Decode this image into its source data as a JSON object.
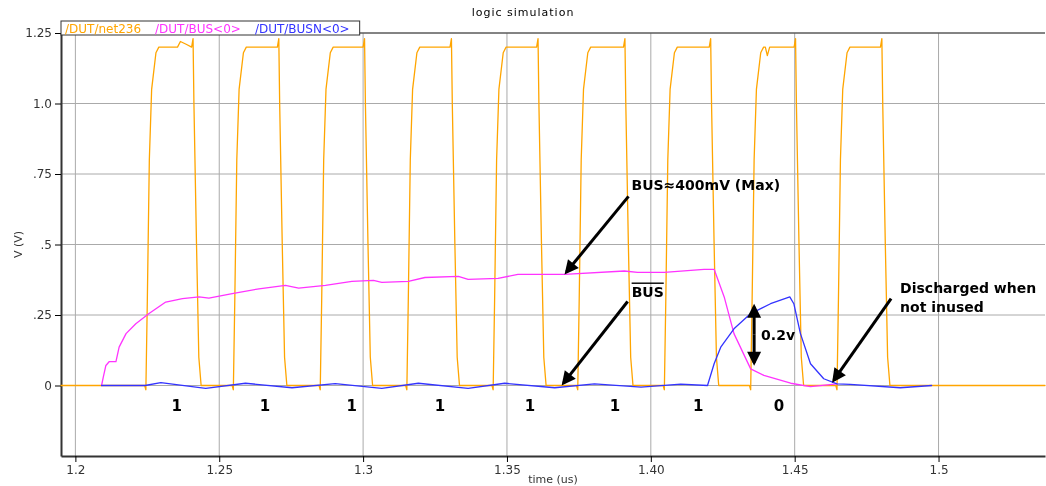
{
  "chart_data": {
    "type": "line",
    "title": "logic simulation",
    "xlabel": "time (us)",
    "ylabel": "V (V)",
    "xlim": [
      1.195,
      1.537
    ],
    "ylim": [
      -0.25,
      1.25
    ],
    "xticks": [
      1.2,
      1.25,
      1.3,
      1.35,
      {
        "value": 1.4,
        "label": "1.40"
      },
      1.45,
      1.5
    ],
    "yticks": [
      0,
      {
        "value": 0.25,
        "label": ".25"
      },
      {
        "value": 0.5,
        "label": ".5"
      },
      {
        "value": 0.75,
        "label": ".75"
      },
      {
        "value": 1,
        "label": "1.0"
      },
      1.25
    ],
    "grid": true,
    "legend": "top left",
    "line_style": "solid",
    "marker": "none",
    "series": [
      {
        "name": "/DUT/net236",
        "color": "#ffa500",
        "x": [
          1.195,
          1.2241,
          1.2245,
          1.225,
          1.2257,
          1.2265,
          1.228,
          1.229,
          1.2355,
          1.2365,
          1.2385,
          1.2404,
          1.2409,
          1.2412,
          1.2421,
          1.2429,
          1.2437,
          1.2545,
          1.2549,
          1.2554,
          1.2561,
          1.2569,
          1.2584,
          1.2594,
          1.2702,
          1.2707,
          1.271,
          1.2719,
          1.2727,
          1.2735,
          1.2847,
          1.2851,
          1.2856,
          1.2863,
          1.2871,
          1.2886,
          1.2896,
          1.3,
          1.3005,
          1.3008,
          1.3017,
          1.3025,
          1.3033,
          1.3148,
          1.3152,
          1.3157,
          1.3164,
          1.3172,
          1.3187,
          1.3197,
          1.3302,
          1.3307,
          1.331,
          1.3319,
          1.3327,
          1.3335,
          1.3448,
          1.3452,
          1.3457,
          1.3464,
          1.3472,
          1.3487,
          1.3497,
          1.3603,
          1.3608,
          1.3611,
          1.362,
          1.3628,
          1.3636,
          1.3742,
          1.3746,
          1.3751,
          1.3758,
          1.3766,
          1.3781,
          1.3791,
          1.3905,
          1.391,
          1.3913,
          1.3922,
          1.393,
          1.3938,
          1.4043,
          1.4047,
          1.4052,
          1.4059,
          1.4067,
          1.4082,
          1.4092,
          1.4203,
          1.4208,
          1.4211,
          1.422,
          1.4228,
          1.4236,
          1.4343,
          1.4347,
          1.4352,
          1.4359,
          1.4367,
          1.4382,
          1.4392,
          1.4398,
          1.4405,
          1.4413,
          1.4498,
          1.4503,
          1.4506,
          1.4515,
          1.4523,
          1.4531,
          1.4643,
          1.4647,
          1.4652,
          1.4659,
          1.4667,
          1.4682,
          1.4692,
          1.4798,
          1.4803,
          1.4806,
          1.4815,
          1.4823,
          1.4831,
          1.537
        ],
        "values": [
          0,
          0,
          -0.015,
          0.3,
          0.8,
          1.05,
          1.18,
          1.2,
          1.2,
          1.22,
          1.21,
          1.2,
          1.23,
          1.0,
          0.5,
          0.1,
          0,
          0,
          -0.015,
          0.3,
          0.8,
          1.05,
          1.18,
          1.2,
          1.2,
          1.23,
          1.0,
          0.5,
          0.1,
          0,
          0,
          -0.015,
          0.3,
          0.8,
          1.05,
          1.18,
          1.2,
          1.2,
          1.23,
          1.0,
          0.5,
          0.1,
          0,
          0,
          -0.015,
          0.3,
          0.8,
          1.05,
          1.18,
          1.2,
          1.2,
          1.23,
          1.0,
          0.5,
          0.1,
          0,
          0,
          -0.015,
          0.3,
          0.8,
          1.05,
          1.18,
          1.2,
          1.2,
          1.23,
          1.0,
          0.5,
          0.1,
          0,
          0,
          -0.015,
          0.3,
          0.8,
          1.05,
          1.18,
          1.2,
          1.2,
          1.23,
          1.0,
          0.5,
          0.1,
          0,
          0,
          -0.015,
          0.3,
          0.8,
          1.05,
          1.18,
          1.2,
          1.2,
          1.23,
          1.0,
          0.5,
          0.1,
          0,
          0,
          -0.015,
          0.3,
          0.8,
          1.05,
          1.18,
          1.2,
          1.2,
          1.17,
          1.2,
          1.2,
          1.23,
          1.0,
          0.5,
          0.1,
          0,
          0,
          -0.015,
          0.3,
          0.8,
          1.05,
          1.18,
          1.2,
          1.2,
          1.23,
          1.0,
          0.5,
          0.1,
          0,
          0
        ]
      },
      {
        "name": "/DUT/BUS<0>",
        "color": "#ff33ff",
        "x": [
          1.2091,
          1.2097,
          1.2106,
          1.2118,
          1.2141,
          1.2152,
          1.2176,
          1.221,
          1.2256,
          1.2314,
          1.2372,
          1.243,
          1.2464,
          1.2545,
          1.2638,
          1.273,
          1.2776,
          1.2869,
          1.2961,
          1.3036,
          1.3065,
          1.3157,
          1.3215,
          1.3331,
          1.3365,
          1.3469,
          1.3538,
          1.37,
          1.3908,
          1.3954,
          1.4047,
          1.4185,
          1.422,
          1.4255,
          1.4289,
          1.4347,
          1.4393,
          1.4486,
          1.4555,
          1.4647
        ],
        "values": [
          0,
          0.03,
          0.071,
          0.085,
          0.085,
          0.136,
          0.184,
          0.219,
          0.255,
          0.296,
          0.308,
          0.314,
          0.31,
          0.326,
          0.343,
          0.355,
          0.345,
          0.355,
          0.369,
          0.373,
          0.366,
          0.369,
          0.383,
          0.387,
          0.376,
          0.38,
          0.394,
          0.394,
          0.406,
          0.401,
          0.401,
          0.412,
          0.412,
          0.314,
          0.184,
          0.059,
          0.036,
          0.008,
          -0.004,
          0.006
        ]
      },
      {
        "name": "/DUT/BUSN<0>",
        "color": "#3333ff",
        "x": [
          1.2091,
          1.2146,
          1.2242,
          1.2297,
          1.2453,
          1.2591,
          1.2753,
          1.2903,
          1.3065,
          1.3192,
          1.3365,
          1.3492,
          1.3666,
          1.3804,
          1.3966,
          1.4104,
          1.4197,
          1.422,
          1.4243,
          1.4289,
          1.4347,
          1.4416,
          1.4483,
          1.4497,
          1.452,
          1.4555,
          1.4601,
          1.4647,
          1.4693,
          1.4867,
          1.4976
        ],
        "values": [
          0,
          0,
          0,
          0.01,
          -0.01,
          0.008,
          -0.008,
          0.007,
          -0.01,
          0.008,
          -0.01,
          0.008,
          -0.008,
          0.006,
          -0.006,
          0.005,
          0,
          0.077,
          0.136,
          0.201,
          0.255,
          0.29,
          0.314,
          0.29,
          0.184,
          0.077,
          0.024,
          0.006,
          0.004,
          -0.008,
          0
        ]
      }
    ],
    "annotations": [
      {
        "text": "BUS≈400mV (Max)",
        "x": 1.37,
        "y": 0.394
      },
      {
        "text": "BUS",
        "x": 1.369,
        "y": 0
      },
      {
        "text": "0.2v",
        "x": 1.4359,
        "y": 0.07
      },
      {
        "text": "Discharged when not inused",
        "x": 1.463,
        "y": 0.01
      },
      "1",
      "1",
      "1",
      "1",
      "1",
      "1",
      "1",
      "0"
    ]
  }
}
